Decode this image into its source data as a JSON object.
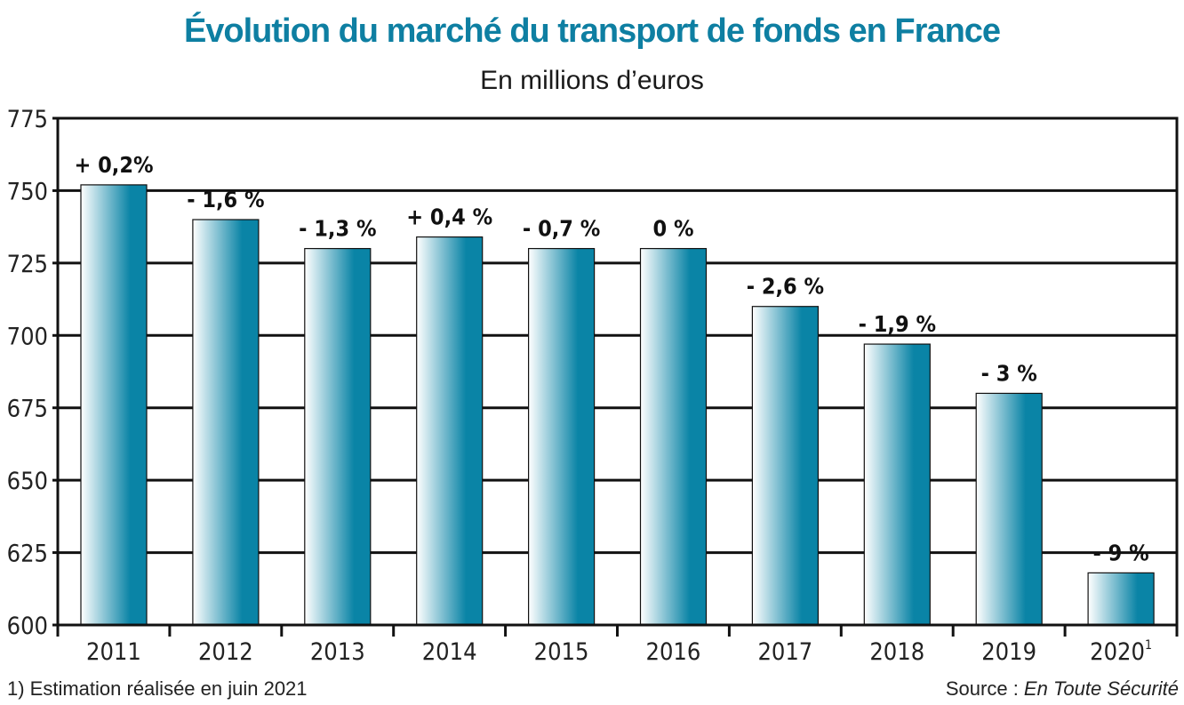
{
  "chart_data": {
    "type": "bar",
    "title": "Évolution du marché du transport de fonds en France",
    "subtitle": "En millions d’euros",
    "categories": [
      "2011",
      "2012",
      "2013",
      "2014",
      "2015",
      "2016",
      "2017",
      "2018",
      "2019",
      "2020"
    ],
    "category_superscripts": [
      "",
      "",
      "",
      "",
      "",
      "",
      "",
      "",
      "",
      "1"
    ],
    "values": [
      752,
      740,
      730,
      734,
      730,
      730,
      710,
      697,
      680,
      618
    ],
    "data_labels": [
      "+ 0,2%",
      "- 1,6 %",
      "- 1,3 %",
      "+ 0,4 %",
      "- 0,7 %",
      "0 %",
      "- 2,6 %",
      "- 1,9 %",
      "- 3 %",
      "- 9 %"
    ],
    "ylim": [
      600,
      775
    ],
    "yticks": [
      600,
      625,
      650,
      675,
      700,
      725,
      750,
      775
    ],
    "grid": true,
    "xlabel": "",
    "ylabel": "",
    "bar_gradient": [
      "#ffffff",
      "#0a84a6"
    ]
  },
  "footnote": "1) Estimation réalisée en juin 2021",
  "source_label": "Source : ",
  "source_name": "En Toute Sécurité"
}
